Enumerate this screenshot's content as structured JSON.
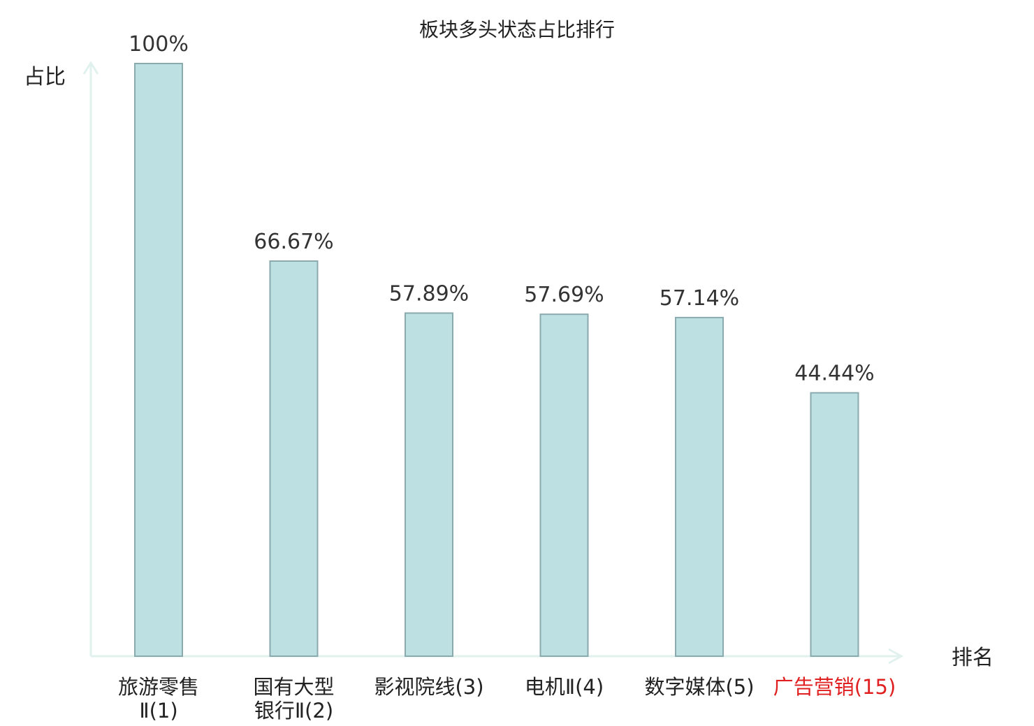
{
  "chart_data": {
    "type": "bar",
    "title": "板块多头状态占比排行",
    "ylabel": "占比",
    "xlabel": "排名",
    "ylim": [
      0,
      100
    ],
    "grid": false,
    "categories": [
      {
        "lines": [
          "旅游零售",
          "Ⅱ(1)"
        ],
        "highlight": false
      },
      {
        "lines": [
          "国有大型",
          "银行Ⅱ(2)"
        ],
        "highlight": false
      },
      {
        "lines": [
          "影视院线(3)"
        ],
        "highlight": false
      },
      {
        "lines": [
          "电机Ⅱ(4)"
        ],
        "highlight": false
      },
      {
        "lines": [
          "数字媒体(5)"
        ],
        "highlight": false
      },
      {
        "lines": [
          "广告营销(15)"
        ],
        "highlight": true
      }
    ],
    "values": [
      100,
      66.67,
      57.89,
      57.69,
      57.14,
      44.44
    ],
    "labels": [
      "100%",
      "66.67%",
      "57.89%",
      "57.69%",
      "57.14%",
      "44.44%"
    ],
    "colors": {
      "bar_fill": "#bde0e3",
      "bar_stroke": "#8aaaae",
      "axis": "#e0f1ee",
      "text": "#222222",
      "value_text": "#333333",
      "highlight": "#e02020"
    }
  }
}
